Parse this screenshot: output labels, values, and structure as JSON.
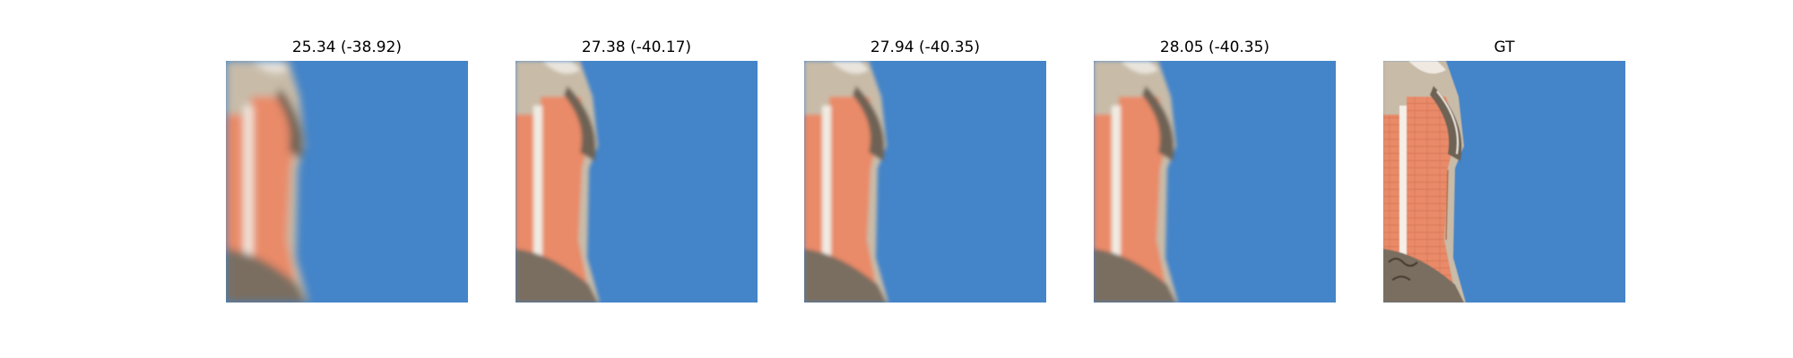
{
  "colors": {
    "sky": "#4484c8",
    "brick": "#e98a68",
    "stone": "#c8bba8",
    "shadow": "#6e6254"
  },
  "panels": [
    {
      "title": "25.34 (-38.92)",
      "variant": "very-blurry"
    },
    {
      "title": "27.38 (-40.17)",
      "variant": "blurry"
    },
    {
      "title": "27.94 (-40.35)",
      "variant": "blurry"
    },
    {
      "title": "28.05 (-40.35)",
      "variant": "blurry"
    },
    {
      "title": "GT",
      "variant": "sharp"
    }
  ]
}
